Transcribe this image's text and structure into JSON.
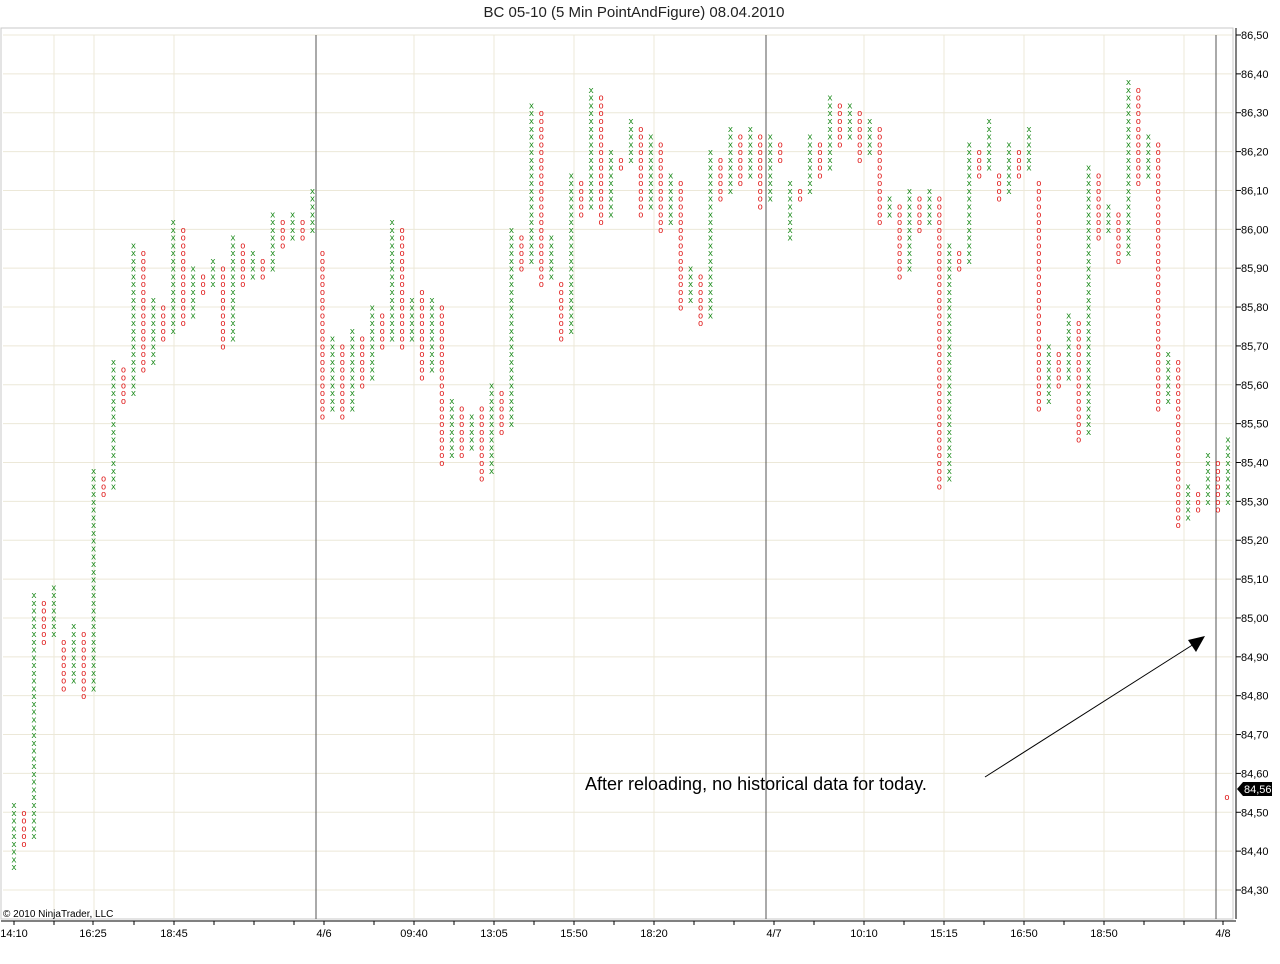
{
  "window": {
    "title": "BC 05-10 (5 Min PointAndFigure)  08.04.2010"
  },
  "copyright": "© 2010 NinjaTrader, LLC",
  "annotation": "After reloading, no historical data for today.",
  "colors": {
    "x_color": "#1e8c1e",
    "o_color": "#e02020",
    "grid": "#ece8d8",
    "axis": "#000000",
    "price_badge_bg": "#000000",
    "price_badge_fg": "#ffffff"
  },
  "chart_data": {
    "type": "point-and-figure",
    "title": "BC 05-10 (5 Min PointAndFigure)  08.04.2010",
    "ylim": [
      84.25,
      86.51
    ],
    "y_ticks": [
      "86,50",
      "86,40",
      "86,30",
      "86,20",
      "86,10",
      "86,00",
      "85,90",
      "85,80",
      "85,70",
      "85,60",
      "85,50",
      "85,40",
      "85,30",
      "85,20",
      "85,10",
      "85,00",
      "84,90",
      "84,80",
      "84,70",
      "84,60",
      "84,50",
      "84,40",
      "84,30"
    ],
    "x_labels": [
      "14:10",
      "16:25",
      "18:45",
      "4/6",
      "09:40",
      "13:05",
      "15:50",
      "18:20",
      "4/7",
      "10:10",
      "15:15",
      "16:50",
      "18:50",
      "4/8"
    ],
    "session_breaks": [
      "4/6",
      "4/7",
      "4/8"
    ],
    "last_price": "84,56",
    "box_size": 0.02,
    "columns": [
      {
        "t": "X",
        "lo": 84.36,
        "hi": 84.52
      },
      {
        "t": "O",
        "lo": 84.42,
        "hi": 84.5
      },
      {
        "t": "X",
        "lo": 84.44,
        "hi": 85.06
      },
      {
        "t": "O",
        "lo": 84.94,
        "hi": 85.04
      },
      {
        "t": "X",
        "lo": 84.96,
        "hi": 85.08
      },
      {
        "t": "O",
        "lo": 84.82,
        "hi": 84.94
      },
      {
        "t": "X",
        "lo": 84.84,
        "hi": 84.98
      },
      {
        "t": "O",
        "lo": 84.8,
        "hi": 84.96
      },
      {
        "t": "X",
        "lo": 84.82,
        "hi": 85.38
      },
      {
        "t": "O",
        "lo": 85.32,
        "hi": 85.36
      },
      {
        "t": "X",
        "lo": 85.34,
        "hi": 85.66
      },
      {
        "t": "O",
        "lo": 85.56,
        "hi": 85.64
      },
      {
        "t": "X",
        "lo": 85.58,
        "hi": 85.96
      },
      {
        "t": "O",
        "lo": 85.64,
        "hi": 85.94
      },
      {
        "t": "X",
        "lo": 85.66,
        "hi": 85.82
      },
      {
        "t": "O",
        "lo": 85.72,
        "hi": 85.8
      },
      {
        "t": "X",
        "lo": 85.74,
        "hi": 86.02
      },
      {
        "t": "O",
        "lo": 85.76,
        "hi": 86.0
      },
      {
        "t": "X",
        "lo": 85.78,
        "hi": 85.9
      },
      {
        "t": "O",
        "lo": 85.84,
        "hi": 85.88
      },
      {
        "t": "X",
        "lo": 85.86,
        "hi": 85.92
      },
      {
        "t": "O",
        "lo": 85.7,
        "hi": 85.9
      },
      {
        "t": "X",
        "lo": 85.72,
        "hi": 85.98
      },
      {
        "t": "O",
        "lo": 85.86,
        "hi": 85.96
      },
      {
        "t": "X",
        "lo": 85.88,
        "hi": 85.94
      },
      {
        "t": "O",
        "lo": 85.88,
        "hi": 85.92
      },
      {
        "t": "X",
        "lo": 85.9,
        "hi": 86.04
      },
      {
        "t": "O",
        "lo": 85.96,
        "hi": 86.02
      },
      {
        "t": "X",
        "lo": 85.98,
        "hi": 86.04
      },
      {
        "t": "O",
        "lo": 85.98,
        "hi": 86.02
      },
      {
        "t": "X",
        "lo": 86.0,
        "hi": 86.1
      },
      {
        "t": "O",
        "lo": 85.52,
        "hi": 85.94
      },
      {
        "t": "X",
        "lo": 85.54,
        "hi": 85.72
      },
      {
        "t": "O",
        "lo": 85.52,
        "hi": 85.7
      },
      {
        "t": "X",
        "lo": 85.54,
        "hi": 85.74
      },
      {
        "t": "O",
        "lo": 85.6,
        "hi": 85.72
      },
      {
        "t": "X",
        "lo": 85.62,
        "hi": 85.8
      },
      {
        "t": "O",
        "lo": 85.7,
        "hi": 85.78
      },
      {
        "t": "X",
        "lo": 85.72,
        "hi": 86.02
      },
      {
        "t": "O",
        "lo": 85.7,
        "hi": 86.0
      },
      {
        "t": "X",
        "lo": 85.72,
        "hi": 85.82
      },
      {
        "t": "O",
        "lo": 85.62,
        "hi": 85.84
      },
      {
        "t": "X",
        "lo": 85.64,
        "hi": 85.82
      },
      {
        "t": "O",
        "lo": 85.4,
        "hi": 85.8
      },
      {
        "t": "X",
        "lo": 85.42,
        "hi": 85.56
      },
      {
        "t": "O",
        "lo": 85.42,
        "hi": 85.54
      },
      {
        "t": "X",
        "lo": 85.44,
        "hi": 85.52
      },
      {
        "t": "O",
        "lo": 85.36,
        "hi": 85.54
      },
      {
        "t": "X",
        "lo": 85.38,
        "hi": 85.6
      },
      {
        "t": "O",
        "lo": 85.48,
        "hi": 85.58
      },
      {
        "t": "X",
        "lo": 85.5,
        "hi": 86.0
      },
      {
        "t": "O",
        "lo": 85.9,
        "hi": 85.98
      },
      {
        "t": "X",
        "lo": 85.92,
        "hi": 86.32
      },
      {
        "t": "O",
        "lo": 85.86,
        "hi": 86.3
      },
      {
        "t": "X",
        "lo": 85.88,
        "hi": 85.98
      },
      {
        "t": "O",
        "lo": 85.72,
        "hi": 85.86
      },
      {
        "t": "X",
        "lo": 85.74,
        "hi": 86.14
      },
      {
        "t": "O",
        "lo": 86.04,
        "hi": 86.12
      },
      {
        "t": "X",
        "lo": 86.06,
        "hi": 86.36
      },
      {
        "t": "O",
        "lo": 86.02,
        "hi": 86.34
      },
      {
        "t": "X",
        "lo": 86.04,
        "hi": 86.2
      },
      {
        "t": "O",
        "lo": 86.16,
        "hi": 86.18
      },
      {
        "t": "X",
        "lo": 86.18,
        "hi": 86.28
      },
      {
        "t": "O",
        "lo": 86.04,
        "hi": 86.26
      },
      {
        "t": "X",
        "lo": 86.06,
        "hi": 86.24
      },
      {
        "t": "O",
        "lo": 86.0,
        "hi": 86.22
      },
      {
        "t": "X",
        "lo": 86.02,
        "hi": 86.14
      },
      {
        "t": "O",
        "lo": 85.8,
        "hi": 86.12
      },
      {
        "t": "X",
        "lo": 85.82,
        "hi": 85.9
      },
      {
        "t": "O",
        "lo": 85.76,
        "hi": 85.88
      },
      {
        "t": "X",
        "lo": 85.78,
        "hi": 86.2
      },
      {
        "t": "O",
        "lo": 86.08,
        "hi": 86.18
      },
      {
        "t": "X",
        "lo": 86.1,
        "hi": 86.26
      },
      {
        "t": "O",
        "lo": 86.12,
        "hi": 86.24
      },
      {
        "t": "X",
        "lo": 86.14,
        "hi": 86.26
      },
      {
        "t": "O",
        "lo": 86.06,
        "hi": 86.24
      },
      {
        "t": "X",
        "lo": 86.08,
        "hi": 86.24
      },
      {
        "t": "O",
        "lo": 86.18,
        "hi": 86.22
      },
      {
        "t": "X",
        "lo": 85.98,
        "hi": 86.12
      },
      {
        "t": "O",
        "lo": 86.08,
        "hi": 86.1
      },
      {
        "t": "X",
        "lo": 86.1,
        "hi": 86.24
      },
      {
        "t": "O",
        "lo": 86.14,
        "hi": 86.22
      },
      {
        "t": "X",
        "lo": 86.16,
        "hi": 86.34
      },
      {
        "t": "O",
        "lo": 86.22,
        "hi": 86.32
      },
      {
        "t": "X",
        "lo": 86.24,
        "hi": 86.32
      },
      {
        "t": "O",
        "lo": 86.18,
        "hi": 86.3
      },
      {
        "t": "X",
        "lo": 86.2,
        "hi": 86.28
      },
      {
        "t": "O",
        "lo": 86.02,
        "hi": 86.26
      },
      {
        "t": "X",
        "lo": 86.04,
        "hi": 86.08
      },
      {
        "t": "O",
        "lo": 85.88,
        "hi": 86.06
      },
      {
        "t": "X",
        "lo": 85.9,
        "hi": 86.1
      },
      {
        "t": "O",
        "lo": 86.0,
        "hi": 86.08
      },
      {
        "t": "X",
        "lo": 86.02,
        "hi": 86.1
      },
      {
        "t": "O",
        "lo": 85.34,
        "hi": 86.08
      },
      {
        "t": "X",
        "lo": 85.36,
        "hi": 85.96
      },
      {
        "t": "O",
        "lo": 85.9,
        "hi": 85.94
      },
      {
        "t": "X",
        "lo": 85.92,
        "hi": 86.22
      },
      {
        "t": "O",
        "lo": 86.14,
        "hi": 86.2
      },
      {
        "t": "X",
        "lo": 86.16,
        "hi": 86.28
      },
      {
        "t": "O",
        "lo": 86.08,
        "hi": 86.14
      },
      {
        "t": "X",
        "lo": 86.1,
        "hi": 86.22
      },
      {
        "t": "O",
        "lo": 86.14,
        "hi": 86.2
      },
      {
        "t": "X",
        "lo": 86.16,
        "hi": 86.26
      },
      {
        "t": "O",
        "lo": 85.54,
        "hi": 86.12
      },
      {
        "t": "X",
        "lo": 85.56,
        "hi": 85.7
      },
      {
        "t": "O",
        "lo": 85.6,
        "hi": 85.68
      },
      {
        "t": "X",
        "lo": 85.62,
        "hi": 85.78
      },
      {
        "t": "O",
        "lo": 85.46,
        "hi": 85.76
      },
      {
        "t": "X",
        "lo": 85.48,
        "hi": 86.16
      },
      {
        "t": "O",
        "lo": 85.98,
        "hi": 86.14
      },
      {
        "t": "X",
        "lo": 86.0,
        "hi": 86.06
      },
      {
        "t": "O",
        "lo": 85.92,
        "hi": 86.04
      },
      {
        "t": "X",
        "lo": 85.94,
        "hi": 86.38
      },
      {
        "t": "O",
        "lo": 86.12,
        "hi": 86.36
      },
      {
        "t": "X",
        "lo": 86.14,
        "hi": 86.24
      },
      {
        "t": "O",
        "lo": 85.54,
        "hi": 86.22
      },
      {
        "t": "X",
        "lo": 85.56,
        "hi": 85.68
      },
      {
        "t": "O",
        "lo": 85.24,
        "hi": 85.66
      },
      {
        "t": "X",
        "lo": 85.26,
        "hi": 85.34
      },
      {
        "t": "O",
        "lo": 85.28,
        "hi": 85.32
      },
      {
        "t": "X",
        "lo": 85.3,
        "hi": 85.42
      },
      {
        "t": "O",
        "lo": 85.28,
        "hi": 85.4
      },
      {
        "t": "X",
        "lo": 85.3,
        "hi": 85.46
      },
      {
        "t": "O",
        "lo": 84.54,
        "hi": 84.54
      }
    ]
  }
}
